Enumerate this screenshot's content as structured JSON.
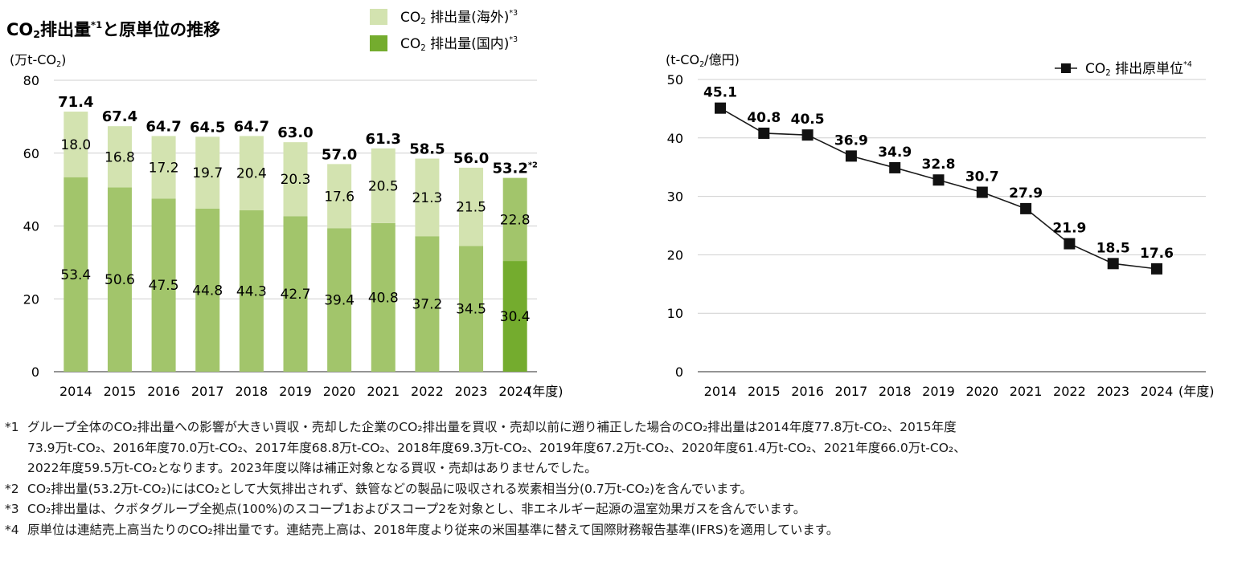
{
  "left_chart": {
    "title_pre": "CO",
    "title_sub": "2",
    "title_post": "排出量",
    "title_sup": "*1",
    "title_tail": "と原単位の推移",
    "unit_pre": "(万t-CO",
    "unit_sub": "2",
    "unit_post": ")",
    "xunit": "(年度)",
    "legend": [
      {
        "pre": "CO",
        "sub": "2",
        "post": " 排出量(海外)",
        "sup": "*3"
      },
      {
        "pre": "CO",
        "sub": "2",
        "post": " 排出量(国内)",
        "sup": "*3"
      }
    ],
    "total_2024_sup": "*2"
  },
  "right_chart": {
    "unit_pre": "(t-CO",
    "unit_sub": "2",
    "unit_post": "/億円)",
    "xunit": "(年度)",
    "legend": {
      "pre": "CO",
      "sub": "2",
      "post": " 排出原単位",
      "sup": "*4"
    }
  },
  "chart_data": [
    {
      "type": "bar",
      "stacked": true,
      "categories": [
        "2014",
        "2015",
        "2016",
        "2017",
        "2018",
        "2019",
        "2020",
        "2021",
        "2022",
        "2023",
        "2024"
      ],
      "series": [
        {
          "name": "CO2 排出量(国内)",
          "values": [
            53.4,
            50.6,
            47.5,
            44.8,
            44.3,
            42.7,
            39.4,
            40.8,
            37.2,
            34.5,
            30.4
          ]
        },
        {
          "name": "CO2 排出量(海外)",
          "values": [
            18.0,
            16.8,
            17.2,
            19.7,
            20.4,
            20.3,
            17.6,
            20.5,
            21.3,
            21.5,
            22.8
          ]
        }
      ],
      "totals": [
        "71.4",
        "67.4",
        "64.7",
        "64.5",
        "64.7",
        "63.0",
        "57.0",
        "61.3",
        "58.5",
        "56.0",
        "53.2"
      ],
      "ylim": [
        0,
        80
      ],
      "yticks": [
        0,
        20,
        40,
        60,
        80
      ],
      "colors": {
        "overseas": "#d3e3b0",
        "domestic": "#a2c56b",
        "domestic_2024": "#74ac2e",
        "overseas_2024": "#a2c56b"
      }
    },
    {
      "type": "line",
      "x": [
        "2014",
        "2015",
        "2016",
        "2017",
        "2018",
        "2019",
        "2020",
        "2021",
        "2022",
        "2023",
        "2024"
      ],
      "series": [
        {
          "name": "CO2 排出原単位",
          "values": [
            45.1,
            40.8,
            40.5,
            36.9,
            34.9,
            32.8,
            30.7,
            27.9,
            21.9,
            18.5,
            17.6
          ]
        }
      ],
      "ylim": [
        0,
        50
      ],
      "yticks": [
        0,
        10,
        20,
        30,
        40,
        50
      ],
      "colors": {
        "line": "#1a1a1a",
        "marker": "#111111"
      }
    }
  ],
  "notes": [
    {
      "mark": "*1",
      "lines": [
        "グループ全体のCO₂排出量への影響が大きい買収・売却した企業のCO₂排出量を買収・売却以前に遡り補正した場合のCO₂排出量は2014年度77.8万t-CO₂、2015年度",
        "73.9万t-CO₂、2016年度70.0万t-CO₂、2017年度68.8万t-CO₂、2018年度69.3万t-CO₂、2019年度67.2万t-CO₂、2020年度61.4万t-CO₂、2021年度66.0万t-CO₂、",
        "2022年度59.5万t-CO₂となります。2023年度以降は補正対象となる買収・売却はありませんでした。"
      ]
    },
    {
      "mark": "*2",
      "lines": [
        "CO₂排出量(53.2万t-CO₂)にはCO₂として大気排出されず、鉄管などの製品に吸収される炭素相当分(0.7万t-CO₂)を含んでいます。"
      ]
    },
    {
      "mark": "*3",
      "lines": [
        "CO₂排出量は、クボタグループ全拠点(100%)のスコープ1およびスコープ2を対象とし、非エネルギー起源の温室効果ガスを含んでいます。"
      ]
    },
    {
      "mark": "*4",
      "lines": [
        "原単位は連結売上高当たりのCO₂排出量です。連結売上高は、2018年度より従来の米国基準に替えて国際財務報告基準(IFRS)を適用しています。"
      ]
    }
  ]
}
